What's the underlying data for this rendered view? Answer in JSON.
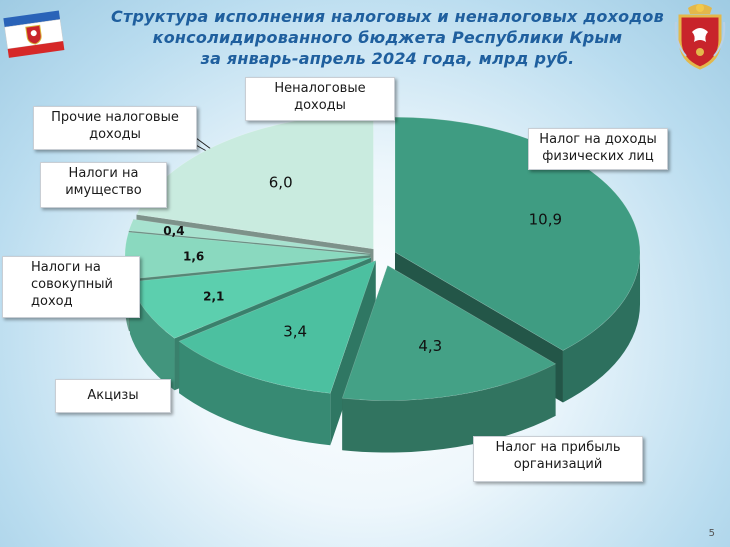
{
  "title": {
    "line1": "Структура исполнения налоговых и неналоговых доходов",
    "line2": "консолидированного бюджета Республики Крым",
    "line3": "за январь-апрель 2024 года, млрд руб."
  },
  "page_number": "5",
  "chart_data": {
    "type": "pie",
    "title": "Структура исполнения налоговых и неналоговых доходов консолидированного бюджета Республики Крым за январь-апрель 2024 года, млрд руб.",
    "unit": "млрд руб.",
    "slices": [
      {
        "label": "Налог на доходы физических лиц",
        "value": 10.9,
        "value_label": "10,9",
        "color": "#3f9c82"
      },
      {
        "label": "Налог на прибыль организаций",
        "value": 4.3,
        "value_label": "4,3",
        "color": "#44a186"
      },
      {
        "label": "Акцизы",
        "value": 3.4,
        "value_label": "3,4",
        "color": "#4cc0a0"
      },
      {
        "label": "Налоги на совокупный доход",
        "value": 2.1,
        "value_label": "2,1",
        "color": "#5ccfae"
      },
      {
        "label": "Налоги на имущество",
        "value": 1.6,
        "value_label": "1,6",
        "color": "#8ad9bf"
      },
      {
        "label": "Прочие налоговые доходы",
        "value": 0.4,
        "value_label": "0,4",
        "color": "#a7e2cf"
      },
      {
        "label": "Неналоговые доходы",
        "value": 6.0,
        "value_label": "6,0",
        "color": "#c9ebdf"
      }
    ]
  },
  "labels": {
    "ndfl": [
      "Налог на доходы",
      "физических лиц"
    ],
    "profit": [
      "Налог на прибыль",
      "организаций"
    ],
    "excise": [
      "Акцизы"
    ],
    "usn": [
      "Налоги на",
      "совокупный",
      "доход"
    ],
    "property": [
      "Налоги на",
      "имущество"
    ],
    "other": [
      "Прочие налоговые",
      "доходы"
    ],
    "nontax": [
      "Неналоговые",
      "доходы"
    ]
  }
}
